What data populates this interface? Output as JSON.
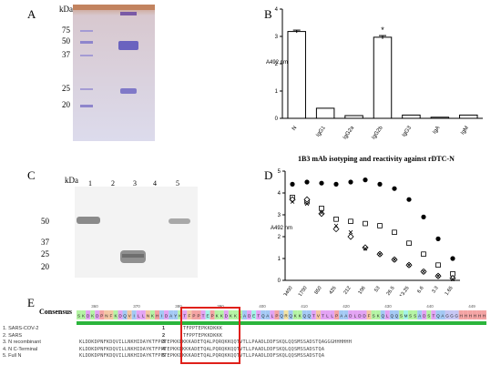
{
  "panels": {
    "a": "A",
    "b": "B",
    "c": "C",
    "d": "D",
    "e": "E"
  },
  "panel_a": {
    "kda_label": "kDa",
    "markers": [
      "75",
      "50",
      "37",
      "25",
      "20"
    ],
    "marker_lane_color": "#8f86c8",
    "sample_bands_color": "#6a63bf"
  },
  "panel_c": {
    "kda_label": "kDa",
    "markers": [
      "50",
      "37",
      "25",
      "20"
    ],
    "lanes": [
      "1",
      "2",
      "3",
      "4",
      "5"
    ]
  },
  "chart_data": [
    {
      "type": "bar",
      "title": "",
      "caption": "1B3 mAb isotyping and reactivity against rDTC-N",
      "ylabel": "A492 nm",
      "ylim": [
        0,
        4
      ],
      "yticks": [
        "0",
        "1",
        "2",
        "3",
        "4"
      ],
      "categories": [
        "N",
        "IgG1",
        "IgG2a",
        "IgG2b",
        "IgG3",
        "IgA",
        "IgM"
      ],
      "values": [
        3.18,
        0.37,
        0.1,
        2.97,
        0.12,
        0.04,
        0.12
      ],
      "errors": [
        0.05,
        0,
        0,
        0.06,
        0,
        0,
        0
      ],
      "annotations": [
        {
          "category": "IgG2b",
          "text": "*"
        }
      ]
    },
    {
      "type": "scatter",
      "ylabel": "A492 nm",
      "ylim": [
        0,
        5
      ],
      "yticks": [
        "0",
        "1",
        "2",
        "3",
        "4",
        "5"
      ],
      "x": [
        "3400",
        "1700",
        "850",
        "425",
        "212",
        "106",
        "53",
        "26.5",
        "13.25",
        "6.6",
        "3.3",
        "1.65"
      ],
      "series": [
        {
          "marker": "filled-circle",
          "values": [
            4.4,
            4.5,
            4.45,
            4.4,
            4.5,
            4.6,
            4.4,
            4.2,
            3.7,
            2.9,
            1.9,
            1.0
          ]
        },
        {
          "marker": "open-square",
          "values": [
            3.8,
            3.6,
            3.3,
            2.8,
            2.7,
            2.6,
            2.5,
            2.2,
            1.7,
            1.2,
            0.7,
            0.3
          ]
        },
        {
          "marker": "open-diamond",
          "values": [
            3.7,
            3.7,
            3.05,
            2.35,
            2.0,
            1.5,
            1.2,
            0.95,
            0.7,
            0.4,
            0.2,
            0.1
          ]
        },
        {
          "marker": "x-cross",
          "values": [
            3.6,
            3.5,
            3.1,
            2.5,
            2.2,
            1.45,
            1.2,
            0.95,
            0.7,
            0.4,
            0.2,
            0.05
          ]
        }
      ]
    }
  ],
  "panel_e": {
    "consensus_label": "Consensus",
    "ruler": [
      "360",
      "370",
      "380",
      "390",
      "400",
      "410",
      "420",
      "430",
      "440",
      "449"
    ],
    "consensus_seq": "SKDKDPNFKDQVILLNKHIDAYKTFPPTEPKKDKKKADETQALPQRQKKQQTVTLLPAADLDDFSKQLQQSMSSADSTQAGGGHHHHHH",
    "sequences": [
      {
        "name": "1. SARS-COV-2",
        "num": "1",
        "seq": "TFPPTEPKKDKKK"
      },
      {
        "name": "2. SARS",
        "num": "2",
        "seq": "TFPPTEPKKDKKK"
      },
      {
        "name": "3. N recombinant",
        "num": "3",
        "seq": "KLDDKDPNFKDQVILLNKHIDAYKTFPPTEPKKDKKKADETQALPQRQKKQQTVTLLPAADLDDFSKQLQQSMSSADSTQAGGGHHHHHH"
      },
      {
        "name": "4. N C-Terminal",
        "num": "4",
        "seq": "KLDDKDPNFKDQVILLNKHIDAYKTFPPTEPKKDKKKADETQALPQRQKKQQTVTLLPAADLDDFSKQLQQSMSSADSTQA"
      },
      {
        "name": "5. Full N",
        "num": "5",
        "seq": "KLDDKDPNFKDQVILLNKHIDAYKTFPPTEPKKDKKKADETQALPQRQKKQQTVTLLPAADLDDFSKQLQQSMSSADSTQA"
      }
    ],
    "highlight_color": "#e0201a"
  }
}
